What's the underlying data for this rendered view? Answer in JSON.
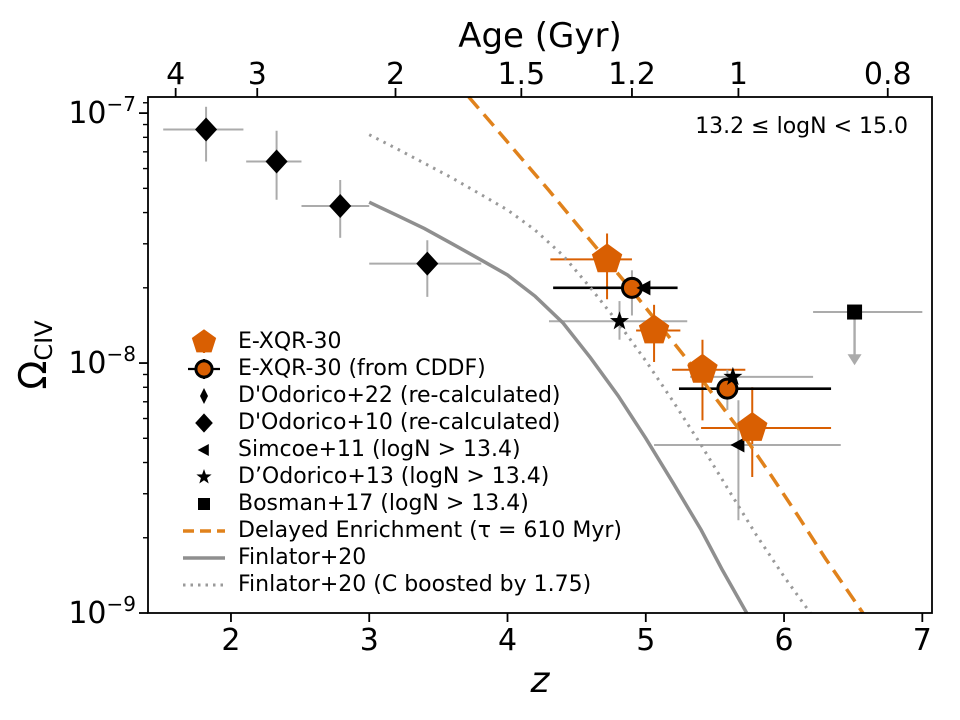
{
  "annotation": {
    "text": "13.2 ≤ logN < 15.0"
  },
  "chart_data": {
    "type": "scatter",
    "title": "",
    "xlabel": "z",
    "ylabel_main": "Ω",
    "ylabel_sub": "CIV",
    "top_axis_label": "Age (Gyr)",
    "xlim": [
      1.4,
      7.07
    ],
    "ylim": [
      1e-09,
      1.16e-07
    ],
    "x_ticks": [
      2,
      3,
      4,
      5,
      6,
      7
    ],
    "y_tick_exponents": [
      -7,
      -8,
      -9
    ],
    "y_scale": "log",
    "grid": false,
    "top_ticks": {
      "labels": [
        "4",
        "3",
        "2",
        "1.5",
        "1.2",
        "1",
        "0.8"
      ],
      "z_positions": [
        1.6,
        2.19,
        3.19,
        4.1,
        4.9,
        5.67,
        6.75
      ]
    },
    "series": [
      {
        "name": "E-XQR-30",
        "marker": "pentagon",
        "color": "#d95f02",
        "err_color": "#d95f02",
        "points": [
          {
            "z": 4.72,
            "y": 2.6e-08,
            "z_lo": 4.31,
            "z_hi": 4.9,
            "y_lo": 1.8e-08,
            "y_hi": 3.3e-08
          },
          {
            "z": 5.06,
            "y": 1.35e-08,
            "z_lo": 4.93,
            "z_hi": 5.25,
            "y_lo": 1.01e-08,
            "y_hi": 1.71e-08
          },
          {
            "z": 5.41,
            "y": 9.4e-09,
            "z_lo": 5.19,
            "z_hi": 5.72,
            "y_lo": 5.9e-09,
            "y_hi": 1.24e-08
          },
          {
            "z": 5.77,
            "y": 5.5e-09,
            "z_lo": 5.4,
            "z_hi": 6.34,
            "y_lo": 3.5e-09,
            "y_hi": 8e-09
          }
        ]
      },
      {
        "name": "E-XQR-30 (from CDDF)",
        "marker": "circle",
        "color": "#d95f02",
        "edge": "#000000",
        "xerr_color": "#000000",
        "err_color": "#ababab",
        "points": [
          {
            "z": 4.9,
            "y": 2e-08,
            "z_lo": 4.33,
            "z_hi": 5.23,
            "y_lo": 1.55e-08,
            "y_hi": 2.35e-08
          },
          {
            "z": 5.59,
            "y": 7.9e-09,
            "z_lo": 5.24,
            "z_hi": 6.34,
            "y_lo": 6.5e-09,
            "y_hi": 9.4e-09
          }
        ]
      },
      {
        "name": "D'Odorico+22 (re-calculated)",
        "marker": "thin-diamond",
        "color": "#000000",
        "err_color": "#ababab",
        "note": "markers occluded behind E-XQR-30 points",
        "points": []
      },
      {
        "name": "D'Odorico+10 (re-calculated)",
        "marker": "diamond",
        "color": "#000000",
        "err_color": "#ababab",
        "points": [
          {
            "z": 1.82,
            "y": 8.6e-08,
            "z_lo": 1.51,
            "z_hi": 2.09,
            "y_lo": 6.4e-08,
            "y_hi": 1.06e-07
          },
          {
            "z": 2.33,
            "y": 6.4e-08,
            "z_lo": 2.11,
            "z_hi": 2.51,
            "y_lo": 4.5e-08,
            "y_hi": 8.5e-08
          },
          {
            "z": 2.79,
            "y": 4.25e-08,
            "z_lo": 2.51,
            "z_hi": 3.0,
            "y_lo": 3.17e-08,
            "y_hi": 5.4e-08
          },
          {
            "z": 3.42,
            "y": 2.5e-08,
            "z_lo": 3.0,
            "z_hi": 3.81,
            "y_lo": 1.84e-08,
            "y_hi": 3.1e-08
          }
        ]
      },
      {
        "name": "Simcoe+11 (logN > 13.4)",
        "marker": "triangle-left",
        "color": "#000000",
        "err_color": "#ababab",
        "points": [
          {
            "z": 4.99,
            "y": 2e-08
          },
          {
            "z": 5.67,
            "y": 4.7e-09,
            "z_lo": 5.06,
            "z_hi": 6.41,
            "y_lo": 2.35e-09,
            "y_hi": 7.1e-09
          }
        ]
      },
      {
        "name": "D’Odorico+13 (logN > 13.4)",
        "marker": "star",
        "color": "#000000",
        "err_color": "#ababab",
        "points": [
          {
            "z": 4.81,
            "y": 1.47e-08,
            "z_lo": 4.3,
            "z_hi": 5.3,
            "y_lo": 1.24e-08,
            "y_hi": 1.77e-08
          },
          {
            "z": 5.63,
            "y": 8.8e-09,
            "z_lo": 5.32,
            "z_hi": 6.21
          }
        ]
      },
      {
        "name": "Bosman+17 (logN > 13.4)",
        "marker": "square",
        "color": "#000000",
        "err_color": "#ababab",
        "points": [
          {
            "z": 6.51,
            "y": 1.6e-08,
            "z_lo": 6.21,
            "z_hi": 7.0,
            "upper_limit_to": 9.8e-09
          }
        ]
      }
    ],
    "lines": [
      {
        "name": "Delayed Enrichment (τ = 610 Myr)",
        "style": "dashed",
        "color": "#e0821c",
        "points": [
          [
            3.72,
            1.16e-07
          ],
          [
            3.9,
            8.9e-08
          ],
          [
            4.1,
            6.6e-08
          ],
          [
            4.3,
            4.9e-08
          ],
          [
            4.5,
            3.6e-08
          ],
          [
            4.7,
            2.65e-08
          ],
          [
            4.9,
            1.95e-08
          ],
          [
            5.1,
            1.42e-08
          ],
          [
            5.3,
            1.03e-08
          ],
          [
            5.5,
            7.3e-09
          ],
          [
            5.7,
            5.2e-09
          ],
          [
            5.9,
            3.6e-09
          ],
          [
            6.1,
            2.45e-09
          ],
          [
            6.3,
            1.65e-09
          ],
          [
            6.45,
            1.25e-09
          ],
          [
            6.57,
            1e-09
          ]
        ]
      },
      {
        "name": "Finlator+20",
        "style": "solid",
        "color": "#8f8f8f",
        "points": [
          [
            3.0,
            4.4e-08
          ],
          [
            3.2,
            3.9e-08
          ],
          [
            3.4,
            3.45e-08
          ],
          [
            3.6,
            3e-08
          ],
          [
            3.8,
            2.6e-08
          ],
          [
            4.0,
            2.25e-08
          ],
          [
            4.2,
            1.85e-08
          ],
          [
            4.4,
            1.45e-08
          ],
          [
            4.6,
            1.05e-08
          ],
          [
            4.8,
            7.4e-09
          ],
          [
            5.0,
            5e-09
          ],
          [
            5.2,
            3.3e-09
          ],
          [
            5.4,
            2.15e-09
          ],
          [
            5.55,
            1.5e-09
          ],
          [
            5.73,
            1e-09
          ]
        ]
      },
      {
        "name": "Finlator+20 (C boosted by 1.75)",
        "style": "dotted",
        "color": "#9a9a9a",
        "points": [
          [
            3.0,
            8.2e-08
          ],
          [
            3.2,
            7.2e-08
          ],
          [
            3.4,
            6.3e-08
          ],
          [
            3.6,
            5.5e-08
          ],
          [
            3.8,
            4.75e-08
          ],
          [
            4.0,
            4.1e-08
          ],
          [
            4.2,
            3.4e-08
          ],
          [
            4.4,
            2.7e-08
          ],
          [
            4.6,
            2e-08
          ],
          [
            4.8,
            1.45e-08
          ],
          [
            5.0,
            1.02e-08
          ],
          [
            5.2,
            7e-09
          ],
          [
            5.4,
            4.7e-09
          ],
          [
            5.6,
            3.1e-09
          ],
          [
            5.8,
            2.05e-09
          ],
          [
            6.0,
            1.4e-09
          ],
          [
            6.19,
            1e-09
          ]
        ]
      }
    ]
  },
  "legend": {
    "items": [
      {
        "marker": "pentagon",
        "color": "#d95f02",
        "label": "E-XQR-30"
      },
      {
        "marker": "circle-err",
        "color": "#d95f02",
        "label": "E-XQR-30 (from CDDF)"
      },
      {
        "marker": "thin-diamond",
        "color": "#000000",
        "label": "D'Odorico+22 (re-calculated)"
      },
      {
        "marker": "diamond",
        "color": "#000000",
        "label": "D'Odorico+10 (re-calculated)"
      },
      {
        "marker": "triangle-left",
        "color": "#000000",
        "label": "Simcoe+11 (logN > 13.4)"
      },
      {
        "marker": "star",
        "color": "#000000",
        "label": "D’Odorico+13 (logN > 13.4)"
      },
      {
        "marker": "square",
        "color": "#000000",
        "label": "Bosman+17 (logN > 13.4)"
      },
      {
        "marker": "dashed-line",
        "color": "#e0821c",
        "label": "Delayed Enrichment (τ = 610 Myr)"
      },
      {
        "marker": "solid-line",
        "color": "#8f8f8f",
        "label": "Finlator+20"
      },
      {
        "marker": "dotted-line",
        "color": "#9a9a9a",
        "label": "Finlator+20 (C boosted by 1.75)"
      }
    ]
  }
}
